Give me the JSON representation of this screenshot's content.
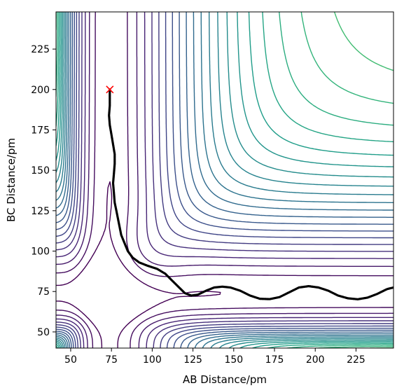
{
  "chart_data": {
    "type": "contour",
    "title": "",
    "xlabel": "AB Distance/pm",
    "ylabel": "BC Distance/pm",
    "xlim": [
      41,
      248
    ],
    "ylim": [
      40,
      248
    ],
    "x_ticks": [
      50,
      75,
      100,
      125,
      150,
      175,
      200,
      225
    ],
    "y_ticks": [
      50,
      75,
      100,
      125,
      150,
      175,
      200,
      225
    ],
    "colormap": "viridis",
    "contour_levels": 30,
    "potential_surface": {
      "kind": "LEPS-like H3 collinear surface",
      "min_AB": 74,
      "min_BC": 74,
      "ts_AB": 93,
      "ts_BC": 93
    },
    "start_point": {
      "x": 74,
      "y": 200,
      "marker": "x",
      "color": "#ff0000"
    },
    "trajectory": {
      "color": "#000000",
      "points": [
        [
          74,
          200
        ],
        [
          74,
          196
        ],
        [
          74,
          190
        ],
        [
          73.5,
          184
        ],
        [
          74,
          178
        ],
        [
          75,
          172
        ],
        [
          76,
          166
        ],
        [
          77,
          160
        ],
        [
          77,
          154
        ],
        [
          76.5,
          148
        ],
        [
          76,
          142
        ],
        [
          76.5,
          136
        ],
        [
          77,
          130
        ],
        [
          78,
          125
        ],
        [
          79,
          120
        ],
        [
          80,
          115
        ],
        [
          81,
          110
        ],
        [
          83,
          105
        ],
        [
          85,
          100
        ],
        [
          88,
          96
        ],
        [
          92,
          93
        ],
        [
          97,
          91
        ],
        [
          103,
          89
        ],
        [
          108,
          86
        ],
        [
          112,
          82
        ],
        [
          116,
          78
        ],
        [
          120,
          74
        ],
        [
          124,
          72.5
        ],
        [
          128,
          73
        ],
        [
          133,
          75.5
        ],
        [
          138,
          77.5
        ],
        [
          143,
          78
        ],
        [
          148,
          77.5
        ],
        [
          154,
          75.5
        ],
        [
          160,
          72.5
        ],
        [
          166,
          70.5
        ],
        [
          172,
          70.3
        ],
        [
          178,
          71.5
        ],
        [
          184,
          74.5
        ],
        [
          190,
          77.5
        ],
        [
          196,
          78.3
        ],
        [
          202,
          77.5
        ],
        [
          208,
          75.5
        ],
        [
          214,
          72.5
        ],
        [
          220,
          70.8
        ],
        [
          226,
          70.2
        ],
        [
          232,
          71.2
        ],
        [
          238,
          73.5
        ],
        [
          244,
          76.5
        ],
        [
          248,
          77.5
        ]
      ]
    }
  }
}
